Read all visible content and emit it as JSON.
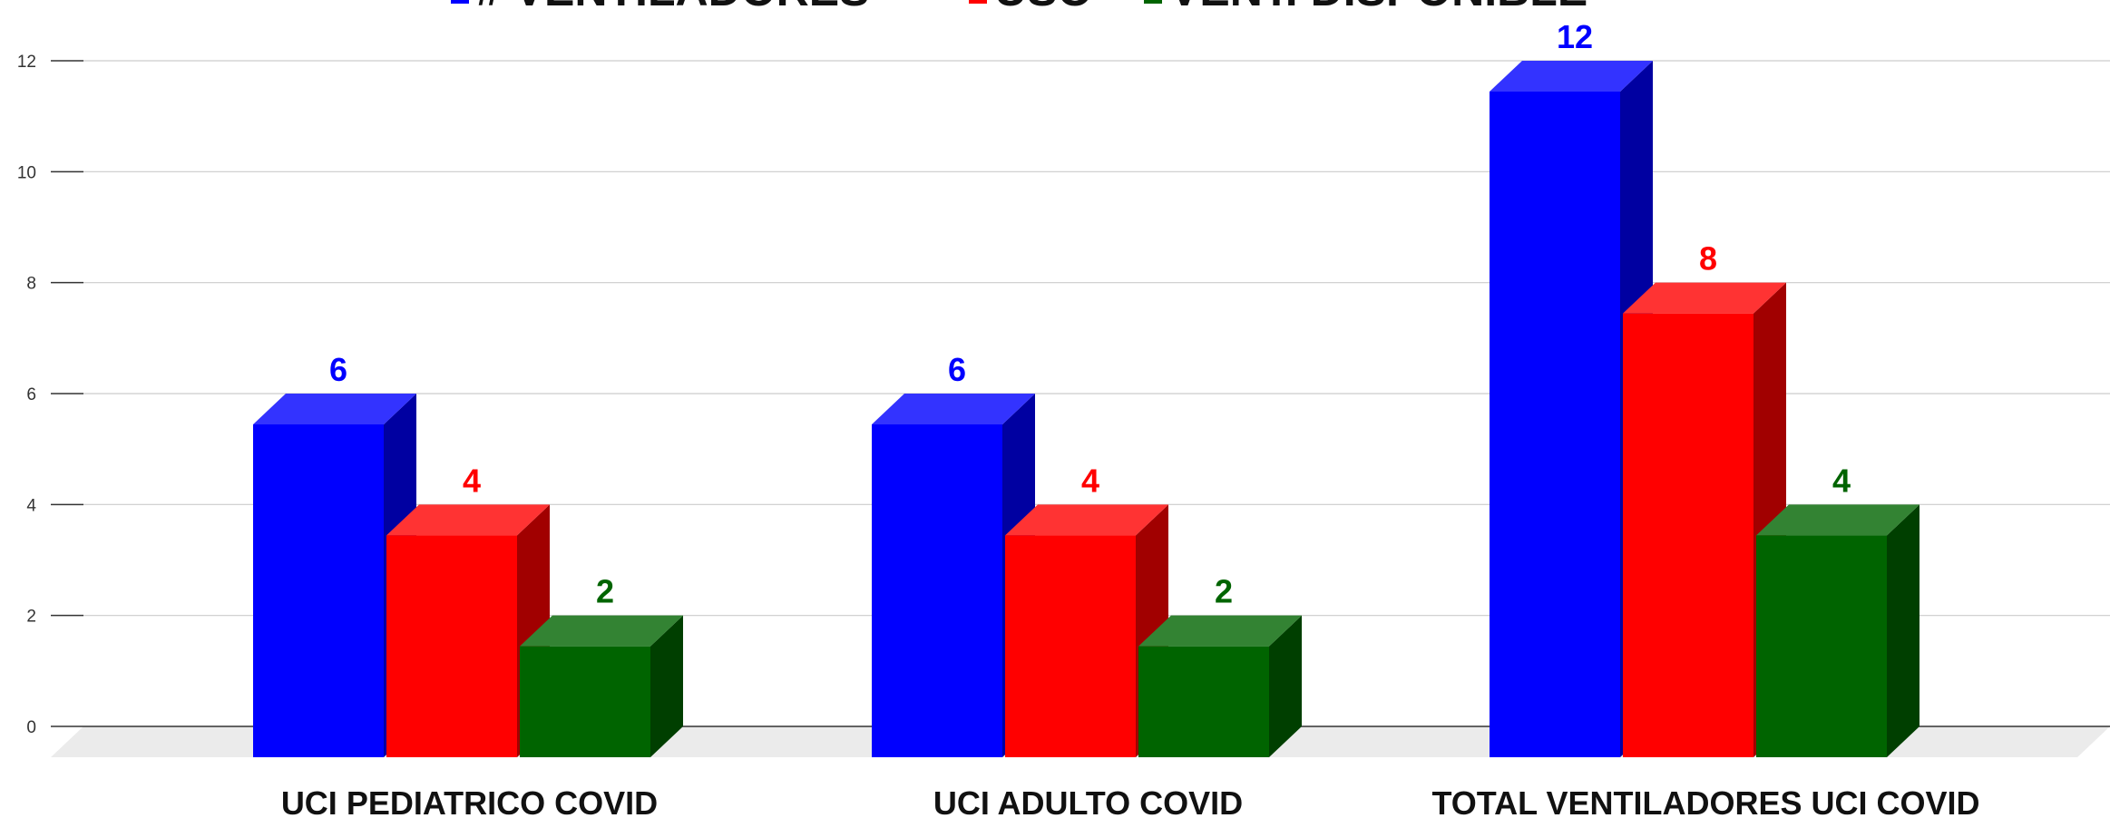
{
  "chart_data": {
    "type": "bar3d",
    "categories": [
      "UCI PEDIATRICO COVID",
      "UCI ADULTO COVID",
      "TOTAL VENTILADORES UCI COVID"
    ],
    "series": [
      {
        "name": "# VENTILADORES",
        "color": "#0000ff",
        "values": [
          6,
          6,
          12
        ]
      },
      {
        "name": "USO",
        "color": "#ff0000",
        "values": [
          4,
          4,
          8
        ]
      },
      {
        "name": "VENT. DISPONIBLE",
        "color": "#006400",
        "values": [
          2,
          2,
          4
        ]
      }
    ],
    "ylim": [
      0,
      12
    ],
    "yticks": [
      0,
      2,
      4,
      6,
      8,
      10,
      12
    ],
    "grid": true,
    "legend": "top"
  }
}
